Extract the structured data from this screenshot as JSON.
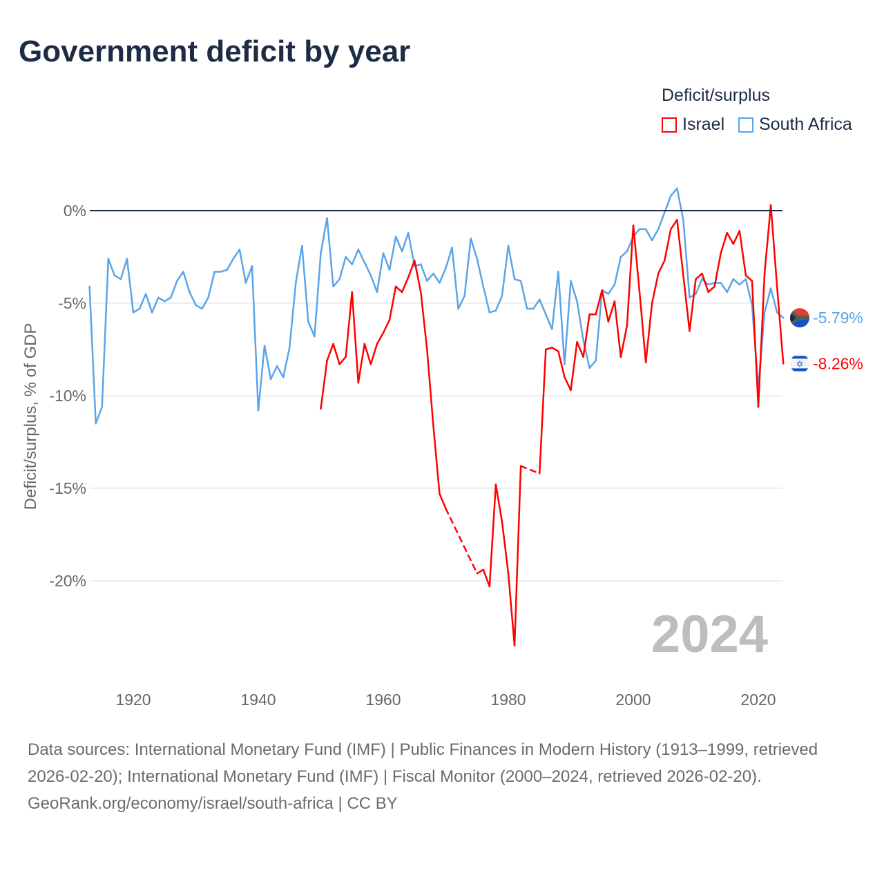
{
  "title": "Government deficit by year",
  "legend": {
    "title": "Deficit/surplus",
    "items": [
      {
        "name": "Israel",
        "color": "#ff0000"
      },
      {
        "name": "South Africa",
        "color": "#5ba4e8"
      }
    ]
  },
  "footer": {
    "sources": "Data sources: International Monetary Fund (IMF) | Public Finances in Modern History (1913–1999, retrieved 2026-02-20); International Monetary Fund (IMF) | Fiscal Monitor (2000–2024, retrieved 2026-02-20).",
    "credit": "GeoRank.org/economy/israel/south-africa | CC BY"
  },
  "chart_data": {
    "type": "line",
    "title": "Government deficit by year",
    "xlabel": "",
    "ylabel": "Deficit/surplus, % of GDP",
    "xlim": [
      1913,
      2024
    ],
    "ylim": [
      -25,
      2.5
    ],
    "xticks": [
      1920,
      1940,
      1960,
      1980,
      2000,
      2020
    ],
    "yticks": [
      {
        "v": 0,
        "label": "0%"
      },
      {
        "v": -5,
        "label": "-5%"
      },
      {
        "v": -10,
        "label": "-10%"
      },
      {
        "v": -15,
        "label": "-15%"
      },
      {
        "v": -20,
        "label": "-20%"
      }
    ],
    "year_label": "2024",
    "series": [
      {
        "name": "South Africa",
        "color": "#5ba4e8",
        "end_label": "-5.79%",
        "flag": "south-africa",
        "start": 1913,
        "values": [
          -4.1,
          -11.5,
          -10.6,
          -2.6,
          -3.5,
          -3.7,
          -2.6,
          -5.5,
          -5.3,
          -4.5,
          -5.5,
          -4.7,
          -4.9,
          -4.7,
          -3.8,
          -3.3,
          -4.4,
          -5.1,
          -5.3,
          -4.7,
          -3.3,
          -3.3,
          -3.2,
          -2.6,
          -2.1,
          -3.9,
          -3.0,
          -10.8,
          -7.3,
          -9.1,
          -8.4,
          -9.0,
          -7.4,
          -3.9,
          -1.9,
          -6.0,
          -6.8,
          -2.3,
          -0.4,
          -4.1,
          -3.7,
          -2.5,
          -2.9,
          -2.1,
          -2.8,
          -3.5,
          -4.4,
          -2.3,
          -3.2,
          -1.4,
          -2.2,
          -1.2,
          -3.0,
          -2.9,
          -3.8,
          -3.4,
          -3.9,
          -3.1,
          -2.0,
          -5.3,
          -4.6,
          -1.5,
          -2.6,
          -4.1,
          -5.5,
          -5.4,
          -4.6,
          -1.9,
          -3.7,
          -3.8,
          -5.3,
          -5.3,
          -4.8,
          -5.6,
          -6.4,
          -3.3,
          -8.3,
          -3.8,
          -4.9,
          -7.0,
          -8.5,
          -8.1,
          -4.3,
          -4.5,
          -4.0,
          -2.5,
          -2.2,
          -1.4,
          -1.0,
          -1.0,
          -1.6,
          -1.0,
          -0.1,
          0.8,
          1.2,
          -0.5,
          -4.7,
          -4.5,
          -3.7,
          -4.0,
          -3.9,
          -3.9,
          -4.4,
          -3.7,
          -4.0,
          -3.7,
          -5.1,
          -9.6,
          -5.5,
          -4.2,
          -5.5,
          -5.79
        ]
      },
      {
        "name": "Israel",
        "color": "#ff0000",
        "end_label": "-8.26%",
        "flag": "israel",
        "start": 1950,
        "values": [
          -10.7,
          -8.1,
          -7.2,
          -8.3,
          -7.9,
          -4.4,
          -9.3,
          -7.2,
          -8.3,
          -7.2,
          -6.6,
          -5.9,
          -4.1,
          -4.4,
          -3.6,
          -2.7,
          -4.4,
          -7.5,
          -11.6,
          -15.3,
          -16.1,
          null,
          null,
          null,
          null,
          -19.6,
          -19.4,
          -20.3,
          -14.8,
          -16.8,
          -19.6,
          -23.5,
          -13.8,
          null,
          null,
          -14.2,
          -7.5,
          -7.4,
          -7.6,
          -9.0,
          -9.7,
          -7.1,
          -7.9,
          -5.6,
          -5.6,
          -4.3,
          -6.0,
          -4.9,
          -7.9,
          -6.2,
          -0.8,
          -4.4,
          -8.2,
          -5.0,
          -3.4,
          -2.7,
          -1.0,
          -0.5,
          -3.5,
          -6.5,
          -3.7,
          -3.4,
          -4.4,
          -4.1,
          -2.3,
          -1.2,
          -1.8,
          -1.1,
          -3.5,
          -3.8,
          -10.6,
          -3.4,
          0.3,
          -4.1,
          -8.26
        ]
      }
    ]
  }
}
